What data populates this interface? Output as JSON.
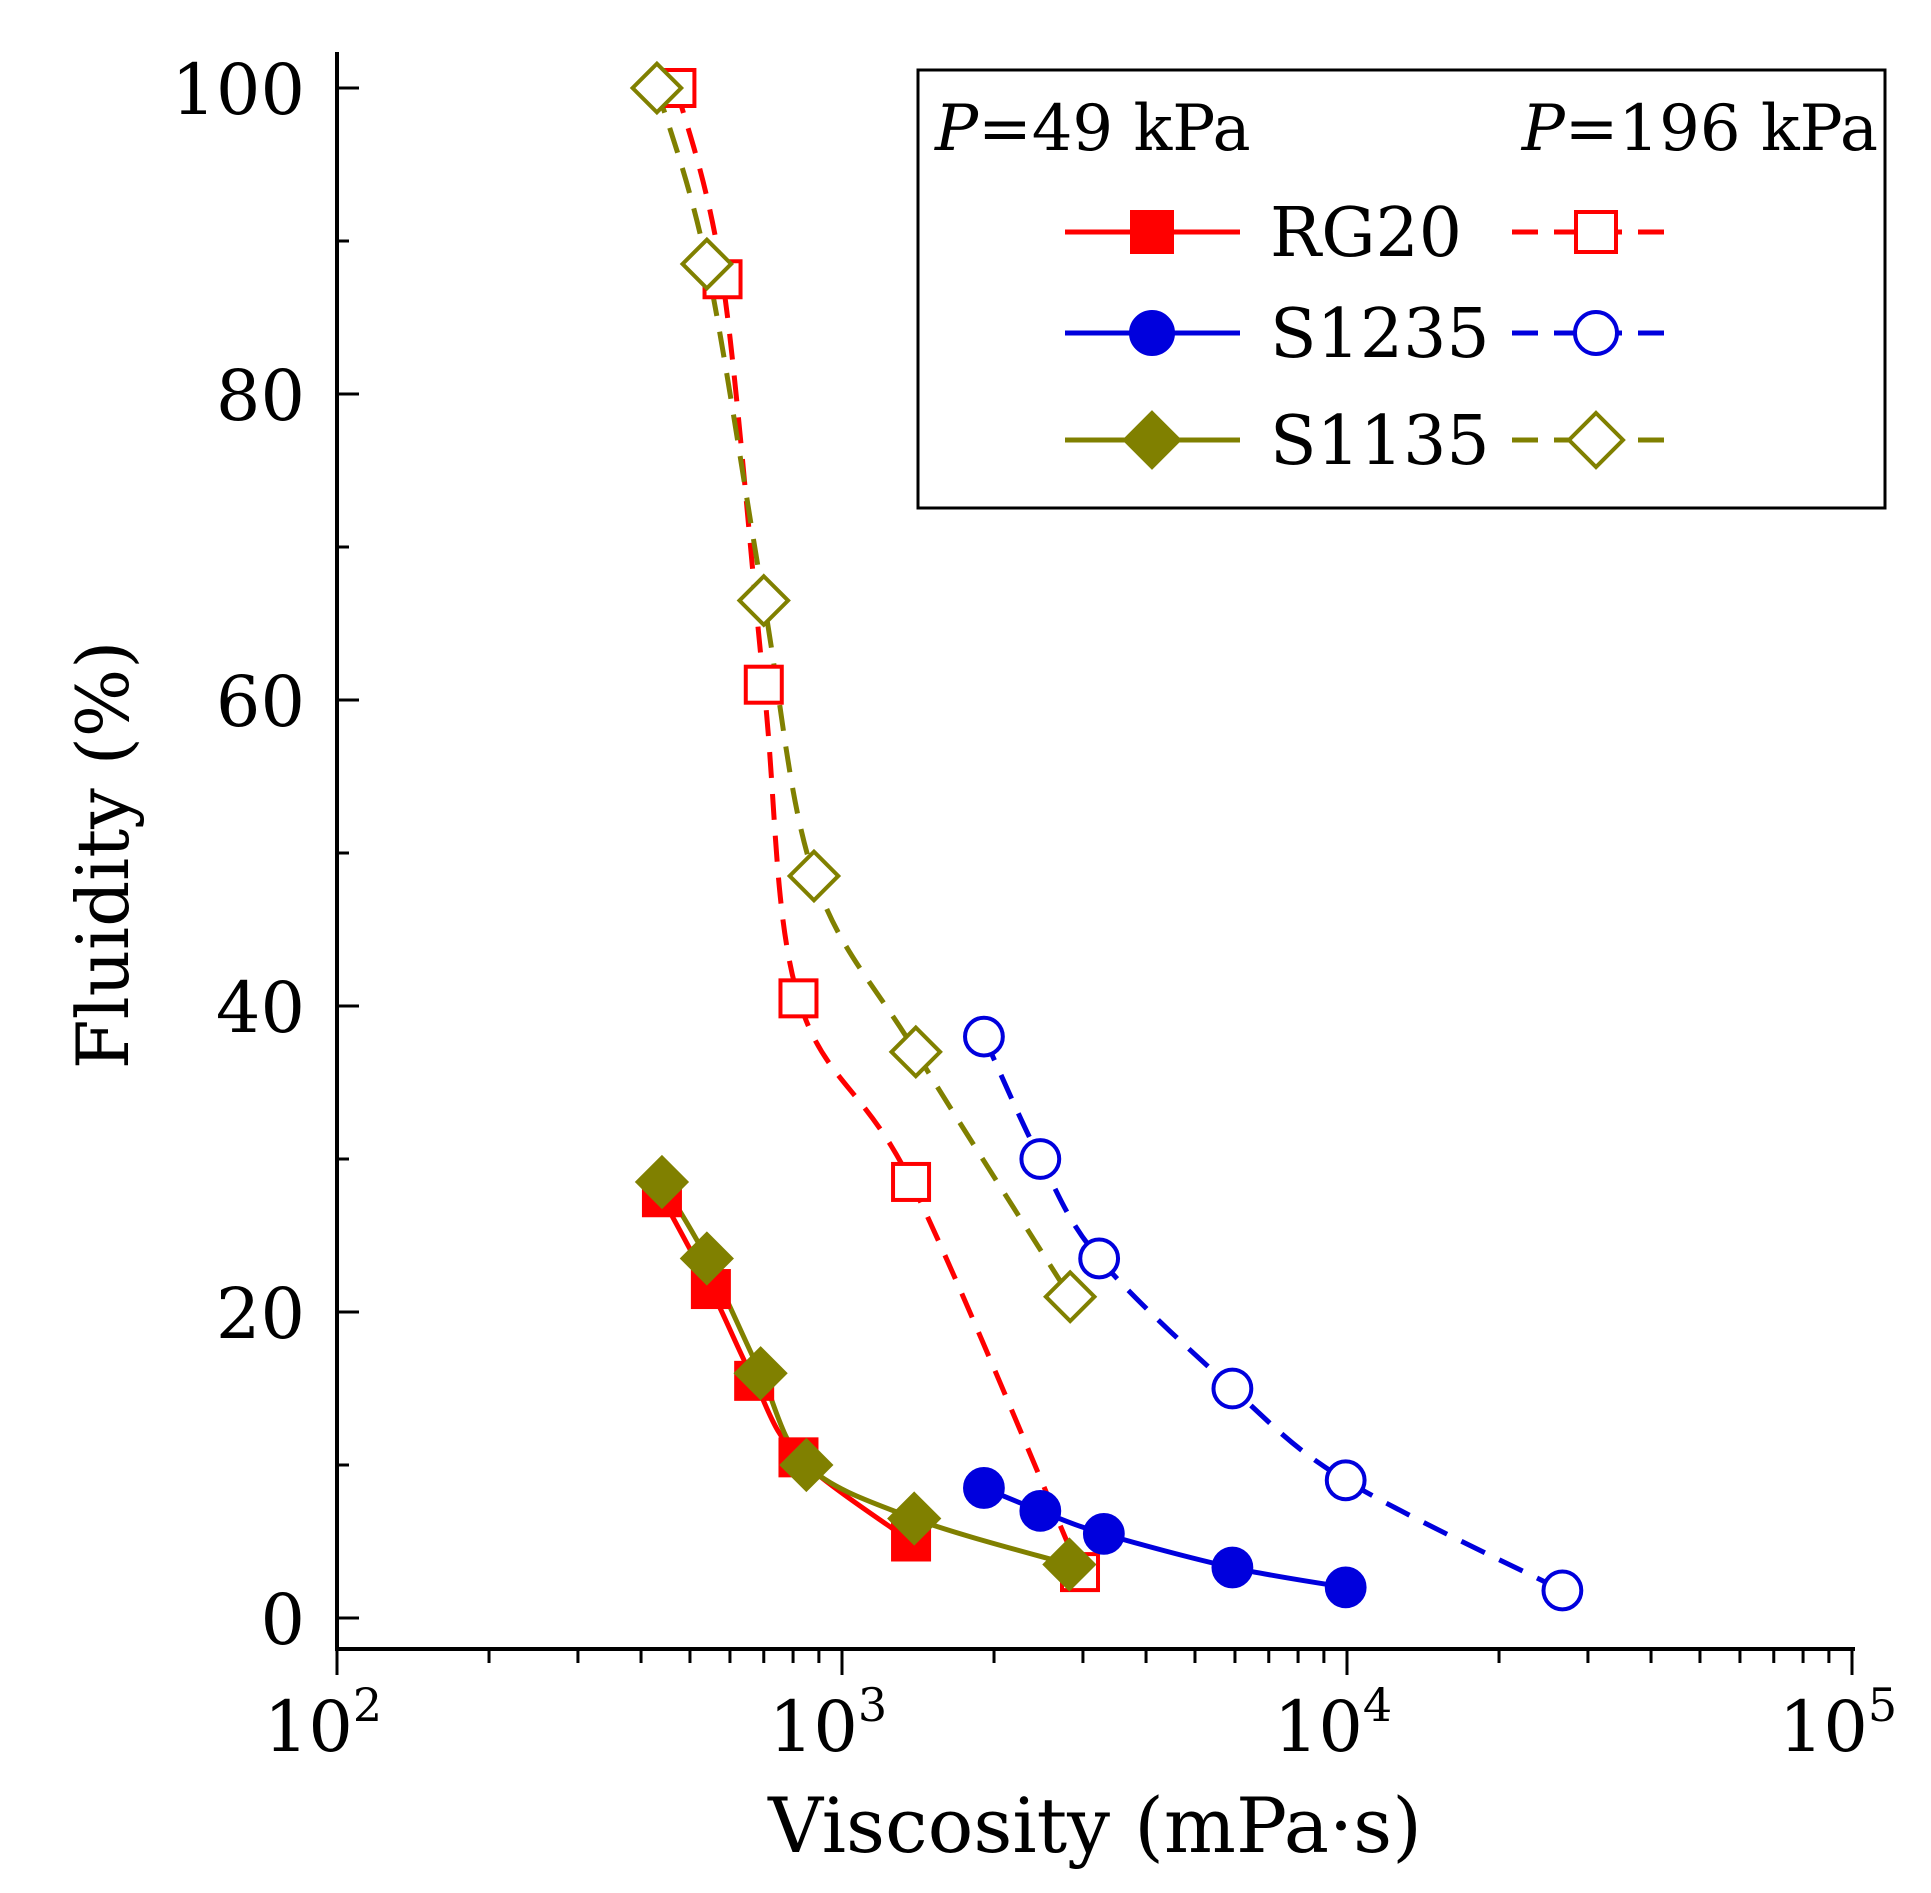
{
  "chart_data": {
    "type": "line",
    "xscale": "log",
    "xlabel": "Viscosity (mPa·s)",
    "ylabel": "Fluidity (%)",
    "xlim": [
      100,
      100000
    ],
    "ylim": [
      -2,
      102
    ],
    "x_ticks": [
      {
        "value": 100,
        "base": "10",
        "exp": "2"
      },
      {
        "value": 1000,
        "base": "10",
        "exp": "3"
      },
      {
        "value": 10000,
        "base": "10",
        "exp": "4"
      },
      {
        "value": 100000,
        "base": "10",
        "exp": "5"
      }
    ],
    "y_ticks": [
      0,
      20,
      40,
      60,
      80,
      100
    ],
    "legend": {
      "placement": "top-right",
      "col1_var": "P",
      "col1_rest": "=49 kPa",
      "col2_var": "P",
      "col2_rest": "=196 kPa",
      "entries": [
        "RG20",
        "S1235",
        "S1135"
      ]
    },
    "series": [
      {
        "name": "RG20",
        "pressure": "49 kPa",
        "color": "#ff0000",
        "marker": "square",
        "filled": true,
        "dashed": false,
        "x": [
          440,
          550,
          670,
          820,
          1370
        ],
        "y": [
          27.5,
          21.5,
          15.5,
          10.5,
          5
        ]
      },
      {
        "name": "RG20",
        "pressure": "196 kPa",
        "color": "#ff0000",
        "marker": "square",
        "filled": false,
        "dashed": true,
        "x": [
          470,
          580,
          700,
          820,
          1370,
          2960
        ],
        "y": [
          100,
          87.5,
          61,
          40.5,
          28.5,
          3
        ]
      },
      {
        "name": "S1235",
        "pressure": "49 kPa",
        "color": "#0000dd",
        "marker": "circle",
        "filled": true,
        "dashed": false,
        "x": [
          1910,
          2470,
          3300,
          5930,
          9940
        ],
        "y": [
          8.5,
          7,
          5.5,
          3.3,
          2
        ]
      },
      {
        "name": "S1235",
        "pressure": "196 kPa",
        "color": "#0000dd",
        "marker": "circle",
        "filled": false,
        "dashed": true,
        "x": [
          1910,
          2470,
          3230,
          5930,
          9940,
          26700
        ],
        "y": [
          38,
          30,
          23.5,
          15,
          9,
          1.8
        ]
      },
      {
        "name": "S1135",
        "pressure": "49 kPa",
        "color": "#808000",
        "marker": "diamond",
        "filled": true,
        "dashed": false,
        "x": [
          440,
          540,
          690,
          850,
          1390,
          2820
        ],
        "y": [
          28.5,
          23.5,
          16,
          10,
          6.5,
          3.5
        ]
      },
      {
        "name": "S1135",
        "pressure": "196 kPa",
        "color": "#808000",
        "marker": "diamond",
        "filled": false,
        "dashed": true,
        "x": [
          430,
          540,
          700,
          880,
          1400,
          2830
        ],
        "y": [
          100,
          88.5,
          66.5,
          48.5,
          37,
          21
        ]
      }
    ]
  }
}
